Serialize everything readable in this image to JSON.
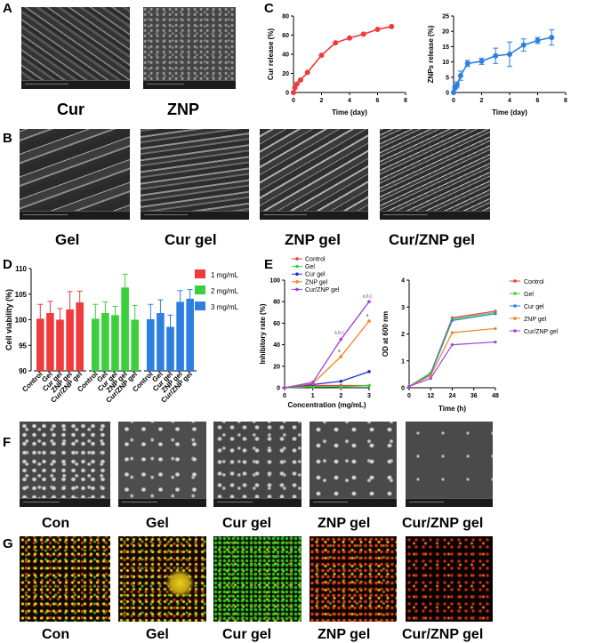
{
  "panels": {
    "A": "A",
    "B": "B",
    "C": "C",
    "D": "D",
    "E": "E",
    "F": "F",
    "G": "G"
  },
  "panelA": {
    "captions": [
      "Cur",
      "ZNP"
    ]
  },
  "panelB": {
    "captions": [
      "Gel",
      "Cur gel",
      "ZNP gel",
      "Cur/ZNP gel"
    ]
  },
  "panelF": {
    "captions": [
      "Con",
      "Gel",
      "Cur gel",
      "ZNP gel",
      "Cur/ZNP gel"
    ]
  },
  "panelG": {
    "captions": [
      "Con",
      "Gel",
      "Cur gel",
      "ZNP gel",
      "Cur/ZNP gel"
    ]
  },
  "colors": {
    "red": "#ef3b3b",
    "green": "#3ccf3c",
    "blue": "#2d7fe0",
    "orange": "#f58220",
    "purple": "#a040d8",
    "darkblue": "#1f2fd0"
  },
  "chart_data": [
    {
      "id": "C1",
      "type": "line",
      "xlabel": "Time (day)",
      "ylabel": "Cur release (%)",
      "xlim": [
        0,
        8
      ],
      "ylim": [
        0,
        80
      ],
      "xticks": [
        "0",
        "2",
        "4",
        "6",
        "8"
      ],
      "yticks": [
        "0",
        "20",
        "40",
        "60",
        "80"
      ],
      "series": [
        {
          "x": [
            0,
            0.1,
            0.25,
            0.5,
            1,
            2,
            3,
            4,
            5,
            6,
            7
          ],
          "y": [
            0,
            5,
            9,
            13,
            21,
            39,
            52,
            57,
            61,
            66,
            69
          ]
        }
      ]
    },
    {
      "id": "C2",
      "type": "line",
      "xlabel": "Time (day)",
      "ylabel": "ZNPs release (%)",
      "xlim": [
        0,
        8
      ],
      "ylim": [
        0,
        25
      ],
      "xticks": [
        "0",
        "2",
        "4",
        "6",
        "8"
      ],
      "yticks": [
        "0",
        "5",
        "10",
        "15",
        "20",
        "25"
      ],
      "series": [
        {
          "x": [
            0,
            0.1,
            0.25,
            0.5,
            1,
            2,
            3,
            4,
            5,
            6,
            7
          ],
          "y": [
            0,
            1.5,
            2.5,
            5.5,
            9.5,
            10.2,
            12,
            12.5,
            15.5,
            17,
            18
          ],
          "err": [
            0,
            0.5,
            1,
            1.5,
            1,
            1,
            2.5,
            4,
            2,
            1,
            2.5
          ]
        }
      ]
    },
    {
      "id": "D",
      "type": "bar",
      "ylabel": "Cell viability (%)",
      "ylim": [
        90,
        110
      ],
      "yticks": [
        "90",
        "95",
        "100",
        "105",
        "110"
      ],
      "categories": [
        "Control",
        "Gel",
        "Cur gel",
        "ZNP gel",
        "Cur/ZNP gel"
      ],
      "legend": [
        "1 mg/mL",
        "2 mg/mL",
        "3 mg/mL"
      ],
      "series": [
        {
          "name": "1 mg/mL",
          "values": [
            100.2,
            101.3,
            100,
            102,
            103.4
          ],
          "err": [
            2.8,
            2.3,
            2.2,
            3.5,
            2.2
          ]
        },
        {
          "name": "2 mg/mL",
          "values": [
            100.2,
            101.3,
            100.9,
            106.3,
            100
          ],
          "err": [
            2.8,
            2.2,
            1.7,
            2.6,
            2.8
          ]
        },
        {
          "name": "3 mg/mL",
          "values": [
            100.1,
            101.3,
            98.6,
            103.5,
            104.1
          ],
          "err": [
            2.9,
            2.6,
            2.3,
            2.2,
            1.8
          ]
        }
      ]
    },
    {
      "id": "E1",
      "type": "line",
      "xlabel": "Concentration (mg/mL)",
      "ylabel": "Inhibitory rate (%)",
      "xlim": [
        0,
        3
      ],
      "ylim": [
        0,
        100
      ],
      "xticks": [
        "0",
        "1",
        "2",
        "3"
      ],
      "yticks": [
        "0",
        "20",
        "40",
        "60",
        "80",
        "100"
      ],
      "legend": [
        "Control",
        "Gel",
        "Cur gel",
        "ZNP gel",
        "Cur/ZNP gel"
      ],
      "annotations": [
        "a,b,c",
        "a",
        "a,b,c",
        "a"
      ],
      "series": [
        {
          "name": "Control",
          "x": [
            0,
            1,
            2,
            3
          ],
          "y": [
            0,
            2,
            2,
            2
          ]
        },
        {
          "name": "Gel",
          "x": [
            0,
            1,
            2,
            3
          ],
          "y": [
            0,
            1,
            1,
            2
          ]
        },
        {
          "name": "Cur gel",
          "x": [
            0,
            1,
            2,
            3
          ],
          "y": [
            0,
            3,
            6,
            15
          ]
        },
        {
          "name": "ZNP gel",
          "x": [
            0,
            1,
            2,
            3
          ],
          "y": [
            0,
            4,
            29,
            62
          ]
        },
        {
          "name": "Cur/ZNP gel",
          "x": [
            0,
            1,
            2,
            3
          ],
          "y": [
            0,
            5,
            45,
            80
          ]
        }
      ]
    },
    {
      "id": "E2",
      "type": "line",
      "xlabel": "Time (h)",
      "ylabel": "OD at 600 nm",
      "xlim": [
        0,
        48
      ],
      "ylim": [
        0,
        4
      ],
      "xticks": [
        "0",
        "12",
        "24",
        "36",
        "48"
      ],
      "yticks": [
        "0",
        "1",
        "2",
        "3",
        "4"
      ],
      "legend": [
        "Control",
        "Gel",
        "Cur gel",
        "ZNP gel",
        "Cur/ZNP gel"
      ],
      "series": [
        {
          "name": "Control",
          "x": [
            0,
            12,
            24,
            48
          ],
          "y": [
            0.05,
            0.55,
            2.6,
            2.85
          ]
        },
        {
          "name": "Gel",
          "x": [
            0,
            12,
            24,
            48
          ],
          "y": [
            0.05,
            0.55,
            2.55,
            2.8
          ]
        },
        {
          "name": "Cur gel",
          "x": [
            0,
            12,
            24,
            48
          ],
          "y": [
            0.05,
            0.5,
            2.5,
            2.75
          ]
        },
        {
          "name": "ZNP gel",
          "x": [
            0,
            12,
            24,
            48
          ],
          "y": [
            0.05,
            0.45,
            2.05,
            2.2
          ]
        },
        {
          "name": "Cur/ZNP gel",
          "x": [
            0,
            12,
            24,
            48
          ],
          "y": [
            0.05,
            0.35,
            1.6,
            1.7
          ]
        }
      ]
    }
  ]
}
